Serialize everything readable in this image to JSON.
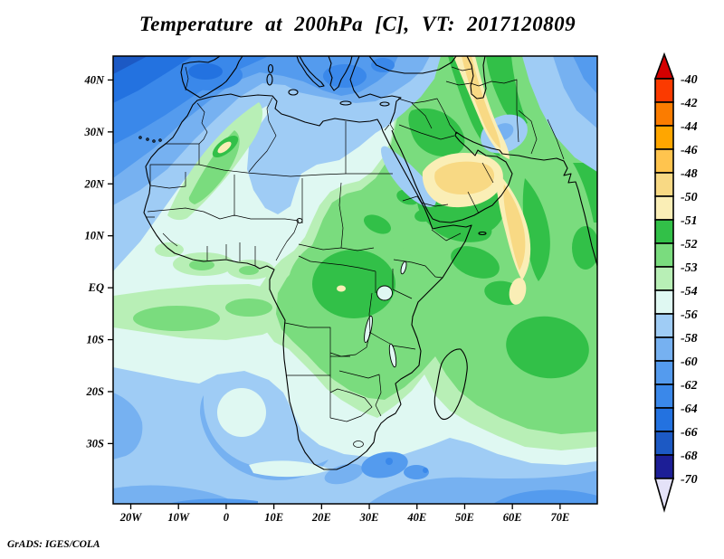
{
  "title": "Temperature at 200hPa [C], VT: 2017120809",
  "credit": "GrADS: IGES/COLA",
  "colorbar": {
    "labels": [
      "-40",
      "-42",
      "-44",
      "-46",
      "-48",
      "-50",
      "-51",
      "-52",
      "-53",
      "-54",
      "-56",
      "-58",
      "-60",
      "-62",
      "-64",
      "-66",
      "-68",
      "-70"
    ],
    "palette": [
      "#d40000",
      "#fb3a00",
      "#fb7c00",
      "#ffa600",
      "#ffc44e",
      "#f8d984",
      "#faeeb6",
      "#32c048",
      "#7adc7e",
      "#b8efb6",
      "#dff8f2",
      "#9fccf5",
      "#76b1f1",
      "#549bee",
      "#3a88ea",
      "#2372e0",
      "#1c59c4",
      "#1c1e96",
      "#e4e2f8"
    ]
  },
  "chart_data": {
    "type": "heatmap",
    "title": "Temperature at 200hPa [C], VT: 2017120809",
    "variable": "Temperature",
    "level": "200hPa",
    "units": "C",
    "valid_time": "2017120809",
    "lon_range": [
      -23.7,
      77.8
    ],
    "lat_range": [
      -41.6,
      44.6
    ],
    "xticks": [
      {
        "value": -20,
        "label": "20W"
      },
      {
        "value": -10,
        "label": "10W"
      },
      {
        "value": 0,
        "label": "0"
      },
      {
        "value": 10,
        "label": "10E"
      },
      {
        "value": 20,
        "label": "20E"
      },
      {
        "value": 30,
        "label": "30E"
      },
      {
        "value": 40,
        "label": "40E"
      },
      {
        "value": 50,
        "label": "50E"
      },
      {
        "value": 60,
        "label": "60E"
      },
      {
        "value": 70,
        "label": "70E"
      }
    ],
    "yticks": [
      {
        "value": 40,
        "label": "40N"
      },
      {
        "value": 30,
        "label": "30N"
      },
      {
        "value": 20,
        "label": "20N"
      },
      {
        "value": 10,
        "label": "10N"
      },
      {
        "value": 0,
        "label": "EQ"
      },
      {
        "value": -10,
        "label": "10S"
      },
      {
        "value": -20,
        "label": "20S"
      },
      {
        "value": -30,
        "label": "30S"
      }
    ],
    "contour_levels": [
      -70,
      -68,
      -66,
      -64,
      -62,
      -60,
      -58,
      -56,
      -54,
      -53,
      -52,
      -51,
      -50,
      -48,
      -46,
      -44,
      -42,
      -40
    ],
    "legend_position": "right",
    "features": [
      {
        "region": "North Atlantic, Iberia, Mediterranean, Europe",
        "value_c": "-58 to -68",
        "note": "cold band across map top, coldest northwest corner and over Spain"
      },
      {
        "region": "Central Sahara (Algeria/Mali)",
        "value_c": "-50 to -53",
        "note": "warm diagonal streak with small -50 pale-yellow core"
      },
      {
        "region": "Turkey-Caspian diagonal",
        "value_c": "-46 to -50",
        "note": "warm amber band from top edge toward Iran"
      },
      {
        "region": "Saudi Arabia and Arabian Sea",
        "value_c": "-46 to -50",
        "note": "warmest patches, amber cores surrounded by -51/-52 green"
      },
      {
        "region": "Central Iran / Afghanistan",
        "value_c": "-56 to -60",
        "note": "cool blue pocket and cold northeast corner"
      },
      {
        "region": "Congo basin",
        "value_c": "-50 to -53",
        "note": "green blob with tiny -50 spot near the equator"
      },
      {
        "region": "Sahel and Libya/Egypt",
        "value_c": "-54 to -58",
        "note": "pale band with light blue streaks"
      },
      {
        "region": "East Africa and northwest Indian Ocean",
        "value_c": "-51 to -54",
        "note": "broad green region"
      },
      {
        "region": "Southwest Indian Ocean east of Madagascar",
        "value_c": "-51 to -52",
        "note": "dark green core"
      },
      {
        "region": "South Atlantic and Southern Ocean",
        "value_c": "-56 to -62",
        "note": "blue swirl west of Namibia, blues over South Africa and far south"
      }
    ]
  }
}
